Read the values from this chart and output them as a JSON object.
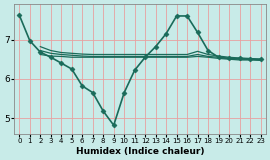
{
  "background_color": "#c8ebe8",
  "grid_color": "#e8a0a0",
  "line_color": "#1a6b5a",
  "xlabel": "Humidex (Indice chaleur)",
  "xlim": [
    -0.5,
    23.5
  ],
  "ylim": [
    4.6,
    7.9
  ],
  "yticks": [
    5,
    6,
    7
  ],
  "xticks": [
    0,
    1,
    2,
    3,
    4,
    5,
    6,
    7,
    8,
    9,
    10,
    11,
    12,
    13,
    14,
    15,
    16,
    17,
    18,
    19,
    20,
    21,
    22,
    23
  ],
  "series": [
    {
      "x": [
        0,
        1,
        2,
        3,
        4,
        5,
        6,
        7,
        8,
        9,
        10,
        11,
        12,
        13,
        14,
        15,
        16,
        17,
        18,
        19,
        20,
        21,
        22,
        23
      ],
      "y": [
        7.62,
        6.97,
        6.68,
        6.55,
        6.4,
        6.25,
        5.82,
        5.65,
        5.18,
        4.82,
        5.65,
        6.22,
        6.55,
        6.82,
        7.15,
        7.6,
        7.6,
        7.18,
        6.72,
        6.55,
        6.52,
        6.52,
        6.5,
        6.5
      ],
      "marker": "D",
      "markersize": 2.5,
      "linewidth": 1.2,
      "has_marker": true
    },
    {
      "x": [
        2,
        3,
        4,
        5,
        6,
        7,
        8,
        9,
        10,
        11,
        12,
        13,
        14,
        15,
        16,
        17,
        18,
        19,
        20,
        21,
        22,
        23
      ],
      "y": [
        6.82,
        6.72,
        6.67,
        6.65,
        6.63,
        6.62,
        6.62,
        6.62,
        6.62,
        6.62,
        6.62,
        6.62,
        6.62,
        6.62,
        6.62,
        6.7,
        6.62,
        6.58,
        6.55,
        6.53,
        6.52,
        6.5
      ],
      "marker": null,
      "markersize": 0,
      "linewidth": 0.9,
      "has_marker": false
    },
    {
      "x": [
        2,
        3,
        4,
        5,
        6,
        7,
        8,
        9,
        10,
        11,
        12,
        13,
        14,
        15,
        16,
        17,
        18,
        19,
        20,
        21,
        22,
        23
      ],
      "y": [
        6.72,
        6.65,
        6.62,
        6.6,
        6.58,
        6.57,
        6.57,
        6.57,
        6.57,
        6.57,
        6.57,
        6.57,
        6.57,
        6.57,
        6.57,
        6.62,
        6.57,
        6.55,
        6.52,
        6.5,
        6.5,
        6.48
      ],
      "marker": null,
      "markersize": 0,
      "linewidth": 0.9,
      "has_marker": false
    },
    {
      "x": [
        2,
        3,
        4,
        5,
        6,
        7,
        8,
        9,
        10,
        11,
        12,
        13,
        14,
        15,
        16,
        17,
        18,
        19,
        20,
        21,
        22,
        23
      ],
      "y": [
        6.62,
        6.58,
        6.57,
        6.55,
        6.55,
        6.55,
        6.55,
        6.55,
        6.55,
        6.55,
        6.55,
        6.55,
        6.55,
        6.55,
        6.55,
        6.57,
        6.55,
        6.52,
        6.5,
        6.48,
        6.48,
        6.47
      ],
      "marker": null,
      "markersize": 0,
      "linewidth": 0.9,
      "has_marker": false
    }
  ]
}
